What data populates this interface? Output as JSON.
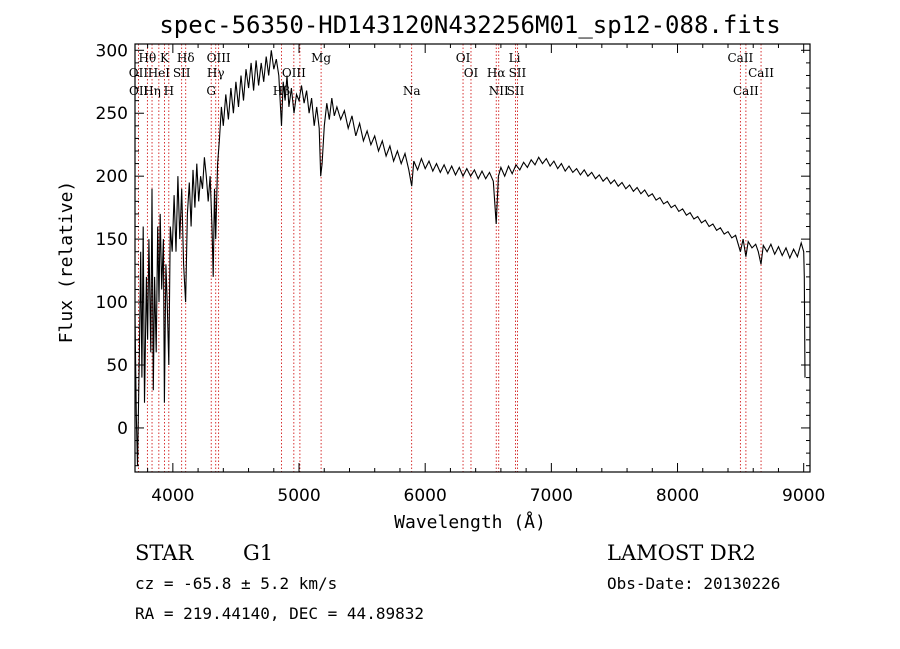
{
  "chart_data": {
    "type": "line",
    "title": "spec-56350-HD143120N432256M01_sp12-088.fits",
    "xlabel": "Wavelength (Å)",
    "ylabel": "Flux (relative)",
    "xlim": [
      3700,
      9050
    ],
    "ylim": [
      -35,
      305
    ],
    "xticks": [
      4000,
      5000,
      6000,
      7000,
      8000,
      9000
    ],
    "yticks": [
      0,
      50,
      100,
      150,
      200,
      250,
      300
    ],
    "spectrum": {
      "name": "flux",
      "points": [
        [
          3700,
          90
        ],
        [
          3710,
          10
        ],
        [
          3720,
          -30
        ],
        [
          3735,
          60
        ],
        [
          3745,
          140
        ],
        [
          3755,
          40
        ],
        [
          3765,
          160
        ],
        [
          3775,
          20
        ],
        [
          3790,
          120
        ],
        [
          3800,
          70
        ],
        [
          3810,
          150
        ],
        [
          3825,
          60
        ],
        [
          3835,
          190
        ],
        [
          3845,
          30
        ],
        [
          3855,
          120
        ],
        [
          3868,
          60
        ],
        [
          3880,
          160
        ],
        [
          3890,
          100
        ],
        [
          3900,
          170
        ],
        [
          3912,
          110
        ],
        [
          3925,
          150
        ],
        [
          3933,
          20
        ],
        [
          3945,
          130
        ],
        [
          3955,
          100
        ],
        [
          3968,
          50
        ],
        [
          3980,
          160
        ],
        [
          3995,
          140
        ],
        [
          4010,
          185
        ],
        [
          4025,
          140
        ],
        [
          4040,
          200
        ],
        [
          4055,
          150
        ],
        [
          4070,
          190
        ],
        [
          4085,
          130
        ],
        [
          4101,
          100
        ],
        [
          4115,
          170
        ],
        [
          4130,
          195
        ],
        [
          4145,
          160
        ],
        [
          4160,
          205
        ],
        [
          4175,
          175
        ],
        [
          4190,
          210
        ],
        [
          4205,
          180
        ],
        [
          4220,
          200
        ],
        [
          4235,
          190
        ],
        [
          4250,
          215
        ],
        [
          4265,
          200
        ],
        [
          4280,
          180
        ],
        [
          4295,
          200
        ],
        [
          4310,
          160
        ],
        [
          4320,
          120
        ],
        [
          4330,
          190
        ],
        [
          4340,
          150
        ],
        [
          4355,
          210
        ],
        [
          4370,
          230
        ],
        [
          4385,
          255
        ],
        [
          4400,
          240
        ],
        [
          4420,
          265
        ],
        [
          4440,
          245
        ],
        [
          4460,
          270
        ],
        [
          4480,
          250
        ],
        [
          4500,
          275
        ],
        [
          4520,
          255
        ],
        [
          4540,
          280
        ],
        [
          4560,
          260
        ],
        [
          4580,
          285
        ],
        [
          4600,
          270
        ],
        [
          4620,
          290
        ],
        [
          4640,
          268
        ],
        [
          4660,
          292
        ],
        [
          4680,
          272
        ],
        [
          4700,
          290
        ],
        [
          4720,
          275
        ],
        [
          4740,
          295
        ],
        [
          4760,
          280
        ],
        [
          4780,
          300
        ],
        [
          4800,
          285
        ],
        [
          4820,
          293
        ],
        [
          4840,
          280
        ],
        [
          4861,
          240
        ],
        [
          4875,
          275
        ],
        [
          4890,
          260
        ],
        [
          4905,
          280
        ],
        [
          4920,
          255
        ],
        [
          4940,
          270
        ],
        [
          4960,
          250
        ],
        [
          4980,
          265
        ],
        [
          5000,
          260
        ],
        [
          5020,
          272
        ],
        [
          5040,
          258
        ],
        [
          5060,
          268
        ],
        [
          5080,
          250
        ],
        [
          5100,
          262
        ],
        [
          5120,
          240
        ],
        [
          5140,
          255
        ],
        [
          5160,
          238
        ],
        [
          5172,
          200
        ],
        [
          5183,
          210
        ],
        [
          5200,
          240
        ],
        [
          5220,
          258
        ],
        [
          5240,
          245
        ],
        [
          5260,
          262
        ],
        [
          5280,
          248
        ],
        [
          5300,
          255
        ],
        [
          5330,
          245
        ],
        [
          5360,
          252
        ],
        [
          5390,
          238
        ],
        [
          5420,
          248
        ],
        [
          5450,
          232
        ],
        [
          5480,
          242
        ],
        [
          5510,
          228
        ],
        [
          5540,
          236
        ],
        [
          5570,
          225
        ],
        [
          5600,
          232
        ],
        [
          5630,
          220
        ],
        [
          5660,
          228
        ],
        [
          5690,
          216
        ],
        [
          5720,
          224
        ],
        [
          5750,
          212
        ],
        [
          5780,
          220
        ],
        [
          5810,
          210
        ],
        [
          5840,
          218
        ],
        [
          5870,
          205
        ],
        [
          5893,
          192
        ],
        [
          5910,
          212
        ],
        [
          5940,
          205
        ],
        [
          5970,
          214
        ],
        [
          6000,
          206
        ],
        [
          6030,
          212
        ],
        [
          6060,
          204
        ],
        [
          6090,
          210
        ],
        [
          6120,
          203
        ],
        [
          6150,
          209
        ],
        [
          6180,
          202
        ],
        [
          6210,
          208
        ],
        [
          6240,
          201
        ],
        [
          6270,
          207
        ],
        [
          6300,
          200
        ],
        [
          6330,
          206
        ],
        [
          6360,
          200
        ],
        [
          6390,
          205
        ],
        [
          6420,
          198
        ],
        [
          6450,
          204
        ],
        [
          6480,
          198
        ],
        [
          6510,
          203
        ],
        [
          6540,
          196
        ],
        [
          6563,
          162
        ],
        [
          6580,
          200
        ],
        [
          6600,
          207
        ],
        [
          6630,
          200
        ],
        [
          6660,
          208
        ],
        [
          6690,
          202
        ],
        [
          6720,
          209
        ],
        [
          6750,
          205
        ],
        [
          6780,
          211
        ],
        [
          6810,
          207
        ],
        [
          6840,
          213
        ],
        [
          6870,
          209
        ],
        [
          6900,
          215
        ],
        [
          6930,
          210
        ],
        [
          6960,
          214
        ],
        [
          6990,
          208
        ],
        [
          7020,
          212
        ],
        [
          7050,
          206
        ],
        [
          7080,
          210
        ],
        [
          7110,
          204
        ],
        [
          7140,
          208
        ],
        [
          7170,
          203
        ],
        [
          7200,
          206
        ],
        [
          7230,
          201
        ],
        [
          7260,
          205
        ],
        [
          7290,
          200
        ],
        [
          7320,
          203
        ],
        [
          7350,
          198
        ],
        [
          7380,
          201
        ],
        [
          7410,
          196
        ],
        [
          7440,
          199
        ],
        [
          7470,
          194
        ],
        [
          7500,
          197
        ],
        [
          7530,
          192
        ],
        [
          7560,
          195
        ],
        [
          7590,
          190
        ],
        [
          7620,
          193
        ],
        [
          7650,
          188
        ],
        [
          7680,
          191
        ],
        [
          7710,
          186
        ],
        [
          7740,
          189
        ],
        [
          7770,
          184
        ],
        [
          7800,
          186
        ],
        [
          7830,
          181
        ],
        [
          7860,
          183
        ],
        [
          7890,
          178
        ],
        [
          7920,
          180
        ],
        [
          7950,
          175
        ],
        [
          7980,
          177
        ],
        [
          8010,
          172
        ],
        [
          8040,
          174
        ],
        [
          8070,
          169
        ],
        [
          8100,
          171
        ],
        [
          8130,
          166
        ],
        [
          8160,
          168
        ],
        [
          8190,
          163
        ],
        [
          8220,
          165
        ],
        [
          8250,
          160
        ],
        [
          8280,
          162
        ],
        [
          8310,
          157
        ],
        [
          8340,
          159
        ],
        [
          8370,
          154
        ],
        [
          8400,
          156
        ],
        [
          8430,
          151
        ],
        [
          8460,
          153
        ],
        [
          8498,
          140
        ],
        [
          8520,
          150
        ],
        [
          8542,
          136
        ],
        [
          8560,
          148
        ],
        [
          8590,
          143
        ],
        [
          8620,
          146
        ],
        [
          8640,
          140
        ],
        [
          8662,
          130
        ],
        [
          8680,
          145
        ],
        [
          8710,
          140
        ],
        [
          8740,
          146
        ],
        [
          8770,
          138
        ],
        [
          8800,
          144
        ],
        [
          8830,
          137
        ],
        [
          8860,
          143
        ],
        [
          8890,
          135
        ],
        [
          8920,
          142
        ],
        [
          8950,
          136
        ],
        [
          8980,
          147
        ],
        [
          9000,
          140
        ],
        [
          9005,
          120
        ],
        [
          9010,
          40
        ]
      ]
    },
    "line_labels": [
      {
        "label": "Hθ",
        "wavelength": 3798,
        "row": 1
      },
      {
        "label": "K",
        "wavelength": 3934,
        "row": 1
      },
      {
        "label": "Hδ",
        "wavelength": 4102,
        "row": 1
      },
      {
        "label": "OIII",
        "wavelength": 4363,
        "row": 1
      },
      {
        "label": "Mg",
        "wavelength": 5175,
        "row": 1
      },
      {
        "label": "OI",
        "wavelength": 6300,
        "row": 1
      },
      {
        "label": "Li",
        "wavelength": 6708,
        "row": 1
      },
      {
        "label": "CaII",
        "wavelength": 8498,
        "row": 1
      },
      {
        "label": "OII",
        "wavelength": 3727,
        "row": 2
      },
      {
        "label": "HeI",
        "wavelength": 3889,
        "row": 2
      },
      {
        "label": "SII",
        "wavelength": 4070,
        "row": 2
      },
      {
        "label": "Hγ",
        "wavelength": 4340,
        "row": 2
      },
      {
        "label": "OIII",
        "wavelength": 4959,
        "row": 2
      },
      {
        "label": "OI",
        "wavelength": 6363,
        "row": 2
      },
      {
        "label": "Hα",
        "wavelength": 6563,
        "row": 2
      },
      {
        "label": "SII",
        "wavelength": 6731,
        "row": 2
      },
      {
        "label": "CaII",
        "wavelength": 8662,
        "row": 2
      },
      {
        "label": "OII",
        "wavelength": 3729,
        "row": 3
      },
      {
        "label": "Hη",
        "wavelength": 3835,
        "row": 3
      },
      {
        "label": "H",
        "wavelength": 3968,
        "row": 3
      },
      {
        "label": "G",
        "wavelength": 4304,
        "row": 3
      },
      {
        "label": "Hβ",
        "wavelength": 4861,
        "row": 3
      },
      {
        "label": "Na",
        "wavelength": 5893,
        "row": 3
      },
      {
        "label": "NII",
        "wavelength": 6583,
        "row": 3
      },
      {
        "label": "SII",
        "wavelength": 6716,
        "row": 3
      },
      {
        "label": "CaII",
        "wavelength": 8542,
        "row": 3
      }
    ],
    "marker_lines": [
      3727,
      3798,
      3835,
      3889,
      3934,
      3968,
      4070,
      4102,
      4304,
      4340,
      4363,
      4861,
      4959,
      5007,
      5175,
      5893,
      6300,
      6363,
      6563,
      6583,
      6716,
      6731,
      8498,
      8542,
      8662
    ],
    "marker_color": "#cc0000"
  },
  "info": {
    "object_type": "STAR",
    "subclass": "G1",
    "survey": "LAMOST DR2",
    "cz": "cz = -65.8 ± 5.2 km/s",
    "obs_date": "Obs-Date: 20130226",
    "radec": "RA = 219.44140, DEC =  44.89832"
  }
}
